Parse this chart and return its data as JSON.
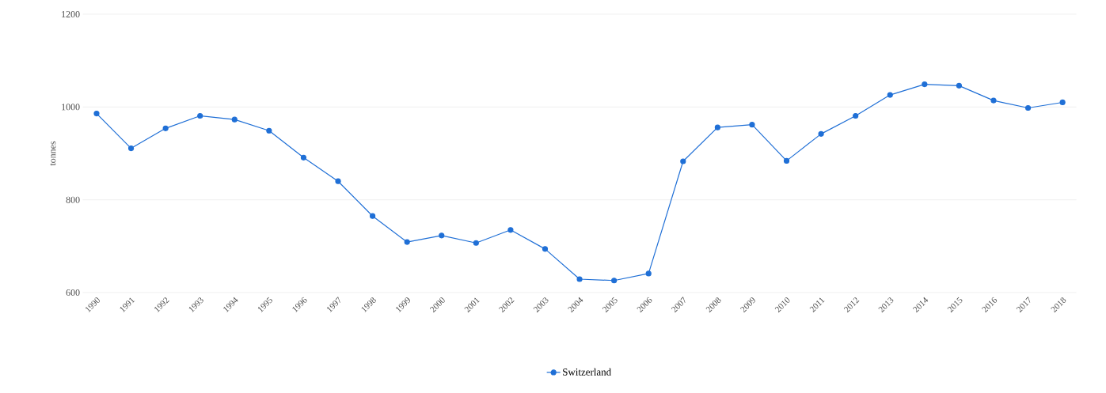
{
  "chart_data": {
    "type": "line",
    "ylabel": "tonnes",
    "categories": [
      "1990",
      "1991",
      "1992",
      "1993",
      "1994",
      "1995",
      "1996",
      "1997",
      "1998",
      "1999",
      "2000",
      "2001",
      "2002",
      "2003",
      "2004",
      "2005",
      "2006",
      "2007",
      "2008",
      "2009",
      "2010",
      "2011",
      "2012",
      "2013",
      "2014",
      "2015",
      "2016",
      "2017",
      "2018"
    ],
    "series": [
      {
        "name": "Switzerland",
        "color": "#1f6fd6",
        "values": [
          986,
          911,
          954,
          981,
          973,
          949,
          891,
          840,
          765,
          709,
          723,
          707,
          735,
          694,
          629,
          626,
          641,
          883,
          956,
          962,
          884,
          942,
          981,
          1026,
          1049,
          1046,
          1014,
          998,
          1010
        ]
      }
    ],
    "ylim": [
      600,
      1200
    ],
    "yticks": [
      600,
      800,
      1000,
      1200
    ],
    "grid": "y",
    "legend": "bottom",
    "marker": "circle",
    "line_style": "solid"
  }
}
